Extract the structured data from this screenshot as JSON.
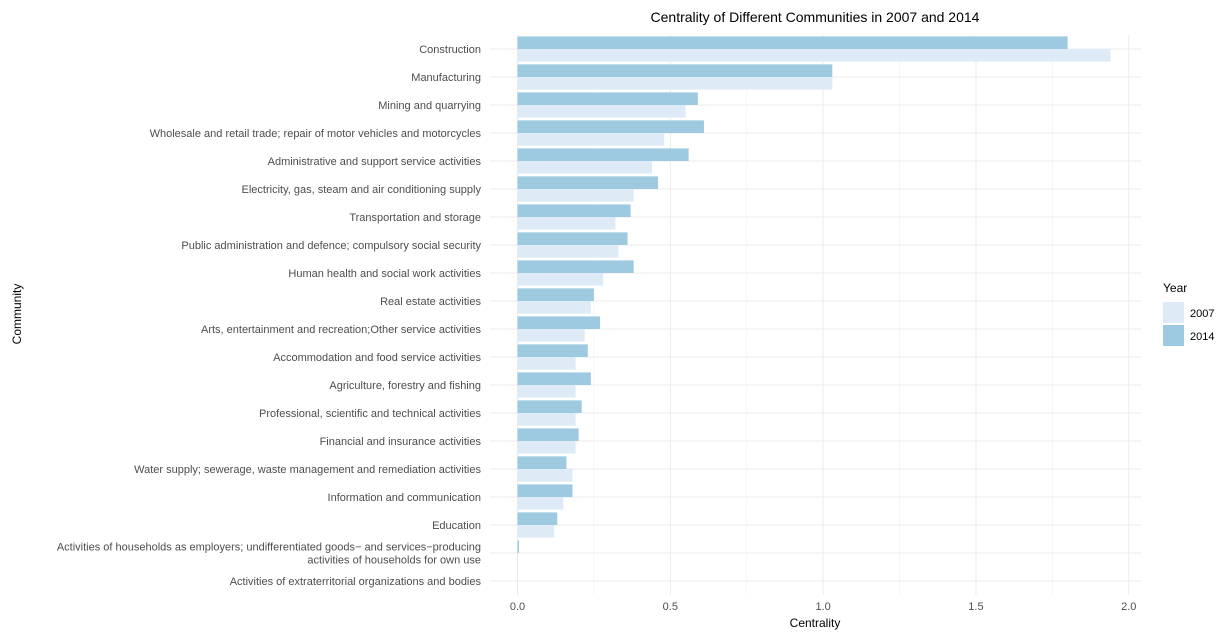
{
  "chart_data": {
    "type": "bar",
    "orientation": "horizontal",
    "title": "Centrality of Different Communities in 2007 and 2014",
    "xlabel": "Centrality",
    "ylabel": "Community",
    "xlim": [
      -0.09,
      2.04
    ],
    "x_ticks": [
      0.0,
      0.5,
      1.0,
      1.5,
      2.0
    ],
    "x_tick_labels": [
      "0.0",
      "0.5",
      "1.0",
      "1.5",
      "2.0"
    ],
    "grid": true,
    "legend": {
      "title": "Year",
      "position": "right"
    },
    "categories": [
      "Construction",
      "Manufacturing",
      "Mining and quarrying",
      "Wholesale and retail trade; repair of motor vehicles and motorcycles",
      "Administrative and support service activities",
      "Electricity, gas, steam and air conditioning supply",
      "Transportation and storage",
      "Public administration and defence; compulsory social security",
      "Human health and social work activities",
      "Real estate activities",
      "Arts, entertainment and recreation;Other service activities",
      "Accommodation and food service activities",
      "Agriculture, forestry and fishing",
      "Professional, scientific and technical activities",
      "Financial and insurance activities",
      "Water supply; sewerage, waste management and remediation activities",
      "Information and communication",
      "Education",
      "Activities of households as employers; undifferentiated goods− and services−producing\nactivities of households for own use",
      "Activities of extraterritorial organizations and bodies"
    ],
    "series": [
      {
        "name": "2007",
        "color": "#deebf7",
        "values": [
          1.94,
          1.03,
          0.55,
          0.48,
          0.44,
          0.38,
          0.32,
          0.33,
          0.28,
          0.24,
          0.22,
          0.19,
          0.19,
          0.19,
          0.19,
          0.18,
          0.15,
          0.12,
          0.0,
          0.0
        ]
      },
      {
        "name": "2014",
        "color": "#9ecae1",
        "values": [
          1.8,
          1.03,
          0.59,
          0.61,
          0.56,
          0.46,
          0.37,
          0.36,
          0.38,
          0.25,
          0.27,
          0.23,
          0.24,
          0.21,
          0.2,
          0.16,
          0.18,
          0.13,
          0.005,
          0.0
        ]
      }
    ]
  }
}
